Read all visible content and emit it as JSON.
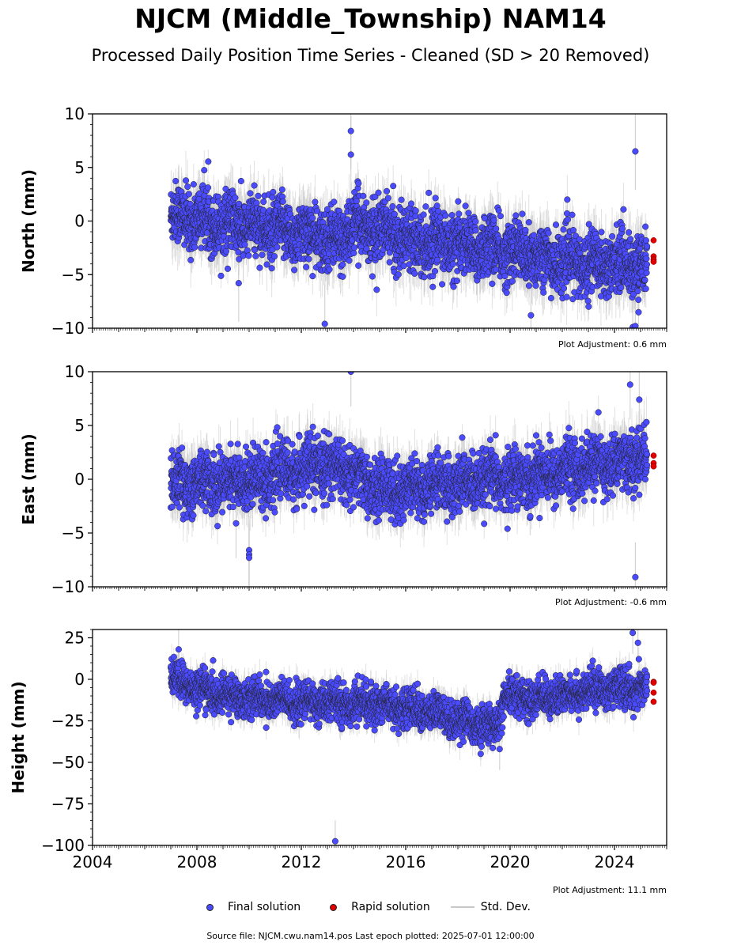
{
  "title": "NJCM (Middle_Township) NAM14",
  "subtitle": "Processed Daily Position Time Series - Cleaned (SD > 20 Removed)",
  "footer": "Source file: NJCM.cwu.nam14.pos  Last epoch plotted: 2025-07-01 12:00:00",
  "legend": {
    "final_label": "Final solution",
    "rapid_label": "Rapid solution",
    "std_label": "Std. Dev."
  },
  "colors": {
    "final": "#4a4aff",
    "rapid": "#e00000",
    "std": "#c8c8c8",
    "marker_edge": "#222222"
  },
  "chart_data": [
    {
      "type": "scatter",
      "ylabel": "North (mm)",
      "xlim": [
        2004,
        2026
      ],
      "ylim": [
        -10,
        10
      ],
      "yticks": [
        -10,
        -5,
        0,
        5,
        10
      ],
      "xticks": [
        2004,
        2008,
        2012,
        2016,
        2020,
        2024
      ],
      "show_x_tick_labels": false,
      "adjustment": "Plot Adjustment: 0.6 mm",
      "series": [
        {
          "name": "Final solution",
          "kind": "final",
          "x_start": 2007.0,
          "x_end": 2025.25,
          "trend_x": [
            2007,
            2010,
            2012,
            2013.5,
            2014,
            2016,
            2018,
            2020,
            2022,
            2025.2
          ],
          "trend_y": [
            0.5,
            -0.5,
            -1.2,
            -1.8,
            -0.3,
            -1.5,
            -2.2,
            -2.8,
            -3.8,
            -4.0
          ],
          "noise": 1.4,
          "std_dev": 2.0,
          "outliers_x": [
            2013.9,
            2013.9,
            2012.9,
            2024.8,
            2024.7,
            2024.8,
            2009.6,
            2020.8
          ],
          "outliers_y": [
            8.4,
            6.2,
            -9.6,
            6.5,
            -9.9,
            -9.8,
            -5.8,
            -8.8
          ]
        },
        {
          "name": "Rapid solution",
          "kind": "rapid",
          "x": [
            2025.5,
            2025.5,
            2025.5,
            2025.5
          ],
          "y": [
            -1.8,
            -3.3,
            -3.6,
            -3.8
          ]
        }
      ]
    },
    {
      "type": "scatter",
      "ylabel": "East (mm)",
      "xlim": [
        2004,
        2026
      ],
      "ylim": [
        -10,
        10
      ],
      "yticks": [
        -10,
        -5,
        0,
        5,
        10
      ],
      "xticks": [
        2004,
        2008,
        2012,
        2016,
        2020,
        2024
      ],
      "show_x_tick_labels": false,
      "adjustment": "Plot Adjustment: -0.6 mm",
      "series": [
        {
          "name": "Final solution",
          "kind": "final",
          "x_start": 2007.0,
          "x_end": 2025.25,
          "trend_x": [
            2007,
            2010,
            2012.8,
            2013.5,
            2015,
            2018,
            2020,
            2022,
            2024,
            2025.2
          ],
          "trend_y": [
            -0.5,
            0.0,
            1.2,
            1.0,
            -1.0,
            -0.5,
            0.0,
            0.8,
            1.5,
            2.0
          ],
          "noise": 1.3,
          "std_dev": 1.8,
          "outliers_x": [
            2010.0,
            2010.0,
            2010.0,
            2024.6,
            2024.8,
            2013.9,
            2024.95,
            2009.5
          ],
          "outliers_y": [
            -6.6,
            -7.0,
            -7.3,
            8.8,
            -9.1,
            10.0,
            7.4,
            -4.1
          ]
        },
        {
          "name": "Rapid solution",
          "kind": "rapid",
          "x": [
            2025.5,
            2025.5,
            2025.5
          ],
          "y": [
            2.2,
            1.5,
            1.2
          ]
        }
      ]
    },
    {
      "type": "scatter",
      "ylabel": "Height (mm)",
      "xlim": [
        2004,
        2026
      ],
      "ylim": [
        -100,
        30
      ],
      "yticks": [
        -100,
        -75,
        -50,
        -25,
        0,
        25
      ],
      "xticks": [
        2004,
        2008,
        2012,
        2016,
        2020,
        2024
      ],
      "xticklabels": [
        "2004",
        "2008",
        "2012",
        "2016",
        "2020",
        "2024"
      ],
      "show_x_tick_labels": true,
      "adjustment": "Plot Adjustment: 11.1 mm",
      "series": [
        {
          "name": "Final solution",
          "kind": "final",
          "x_start": 2007.0,
          "x_end": 2025.25,
          "trend_x": [
            2007,
            2009,
            2012,
            2015,
            2017,
            2018.5,
            2019.5,
            2019.8,
            2021,
            2023,
            2025.2
          ],
          "trend_y": [
            0,
            -10,
            -14,
            -15,
            -20,
            -26,
            -30,
            -10,
            -12,
            -7,
            -5
          ],
          "noise": 5.5,
          "std_dev": 7.0,
          "outliers_x": [
            2013.3,
            2024.7,
            2024.9,
            2007.3,
            2019.6
          ],
          "outliers_y": [
            -97.5,
            28.0,
            22.0,
            18.0,
            -42.0
          ]
        },
        {
          "name": "Rapid solution",
          "kind": "rapid",
          "x": [
            2025.5,
            2025.5,
            2025.5,
            2025.5
          ],
          "y": [
            -1.5,
            -2.0,
            -8.0,
            -13.5
          ]
        }
      ]
    }
  ]
}
